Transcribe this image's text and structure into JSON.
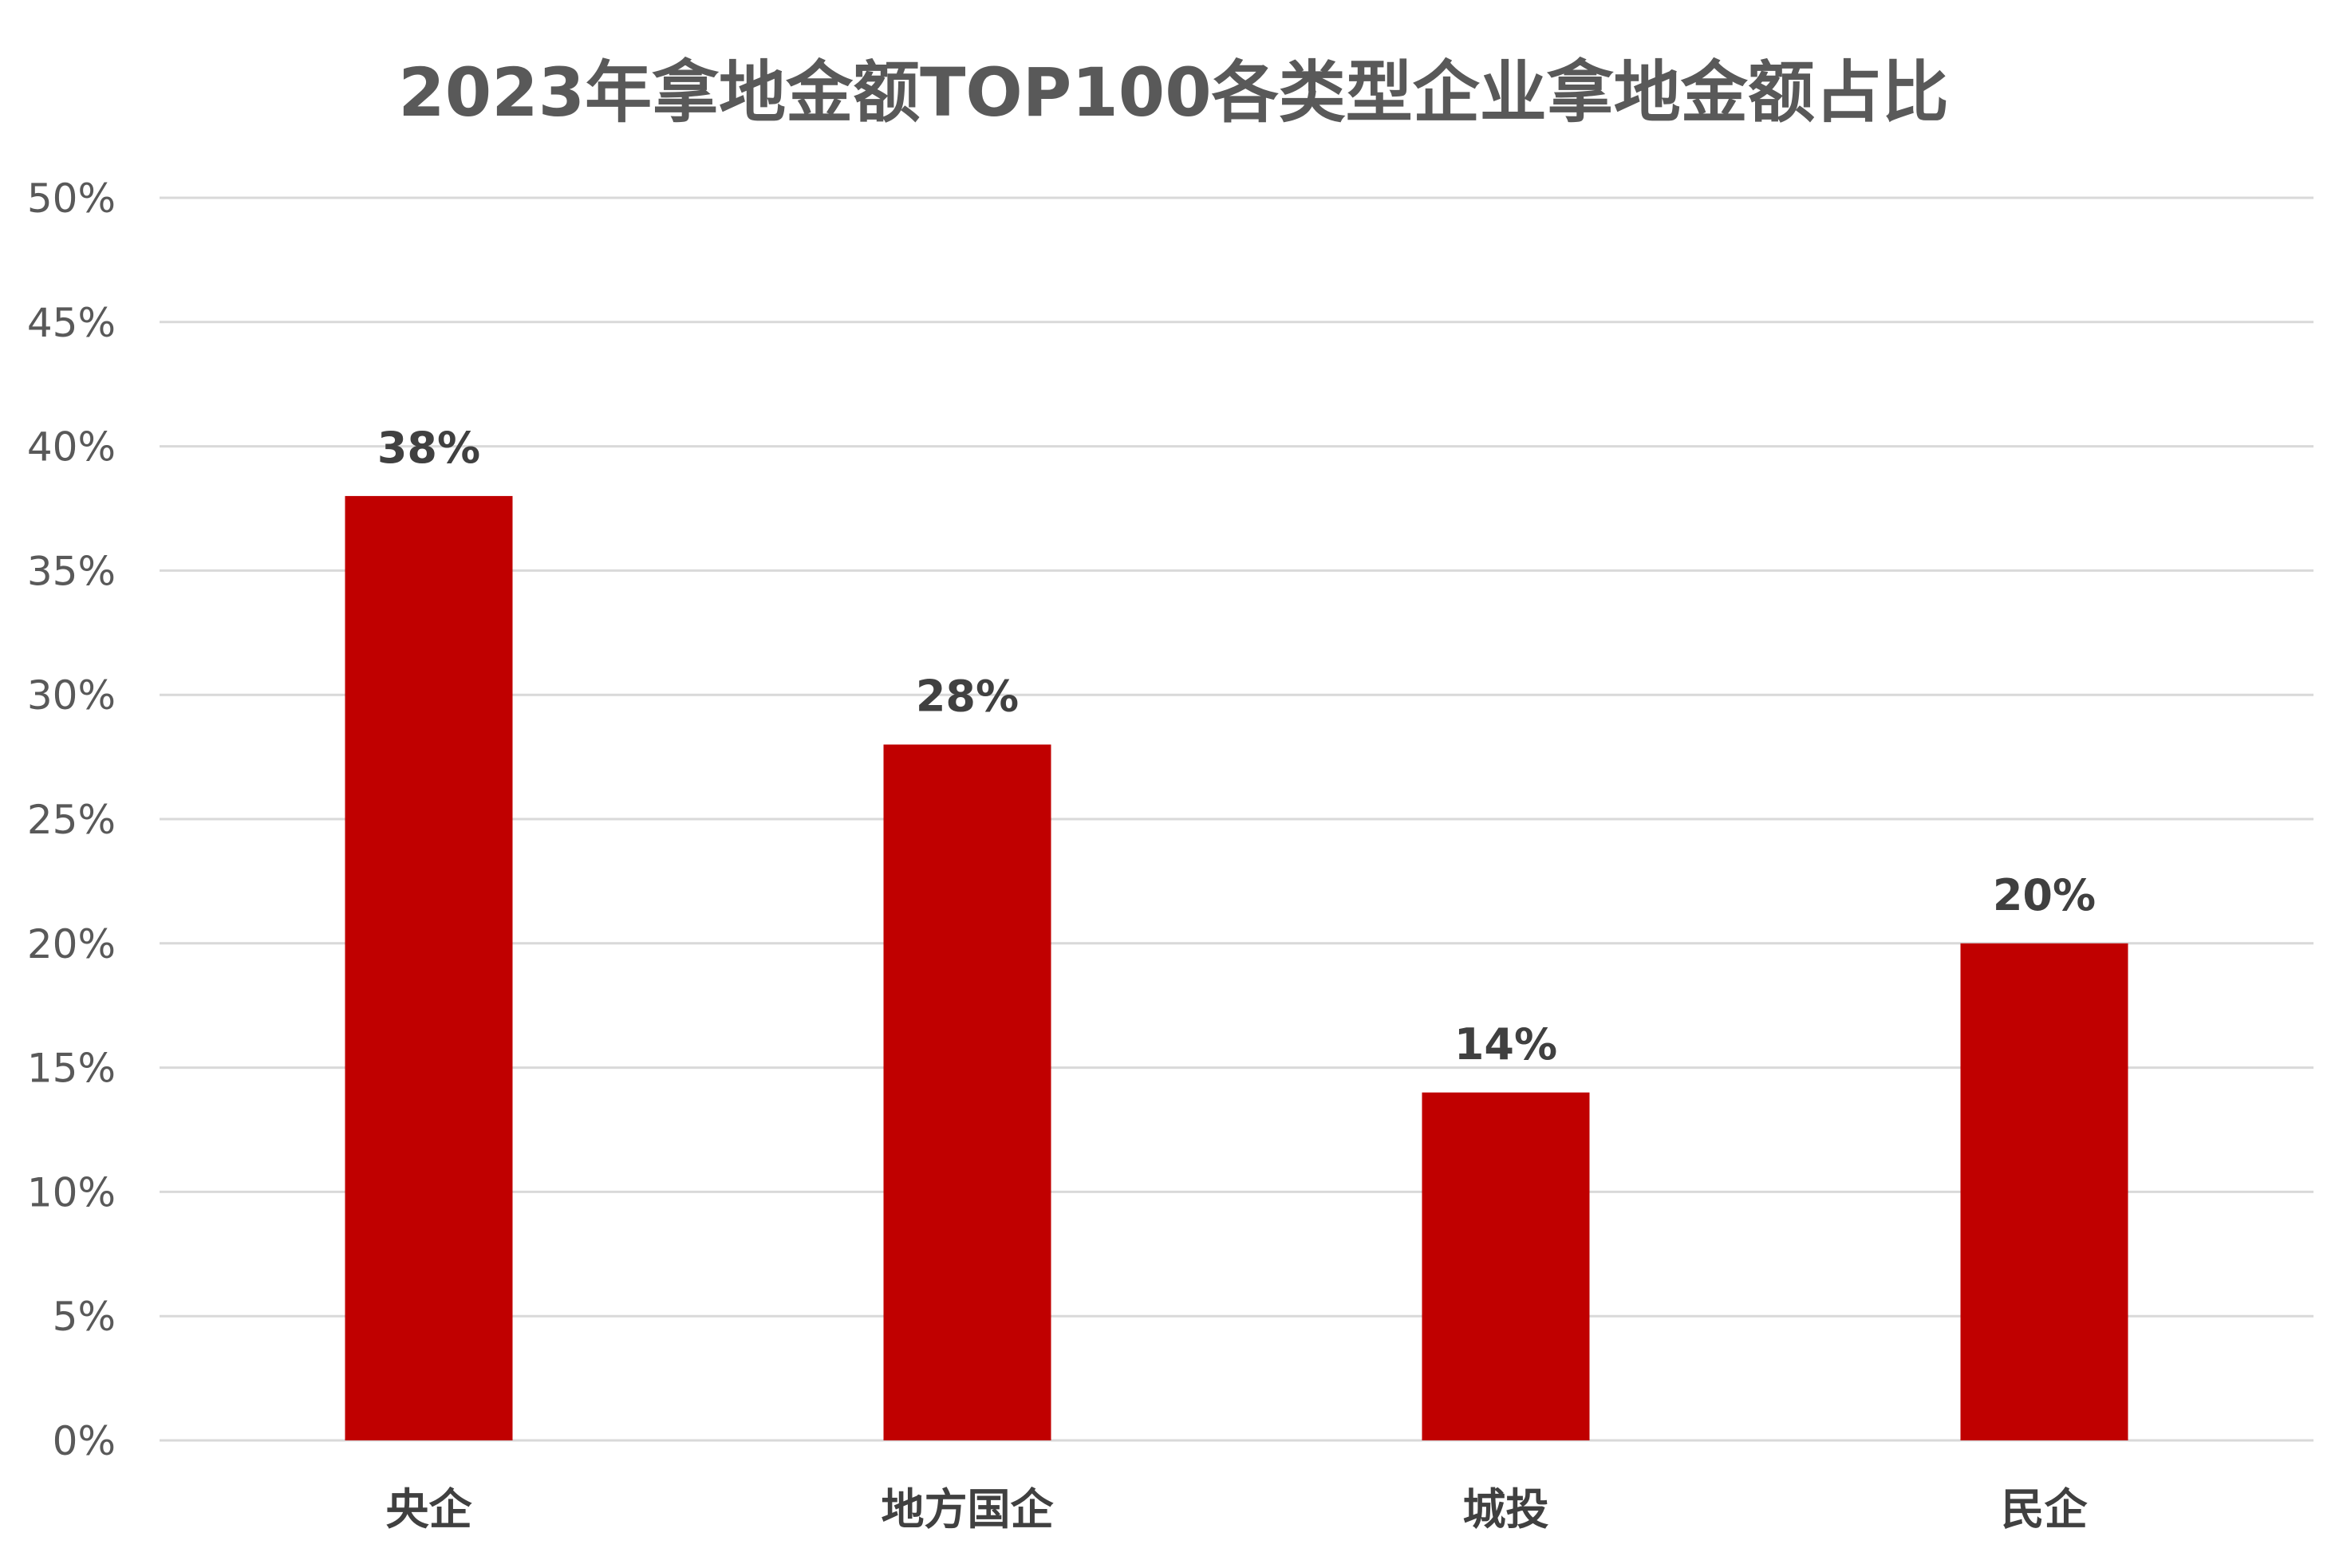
{
  "chart_data": {
    "type": "bar",
    "title": "2023年拿地金额TOP100各类型企业拿地金额占比",
    "xlabel": "",
    "ylabel": "",
    "categories": [
      "央企",
      "地方国企",
      "城投",
      "民企"
    ],
    "values": [
      38,
      28,
      14,
      20
    ],
    "data_labels": [
      "38%",
      "28%",
      "14%",
      "20%"
    ],
    "ylim": [
      0,
      50
    ],
    "y_ticks": [
      0,
      5,
      10,
      15,
      20,
      25,
      30,
      35,
      40,
      45,
      50
    ],
    "y_tick_labels": [
      "0%",
      "5%",
      "10%",
      "15%",
      "20%",
      "25%",
      "30%",
      "35%",
      "40%",
      "45%",
      "50%"
    ],
    "grid": true,
    "legend": "none",
    "bar_color": "#c00000"
  }
}
